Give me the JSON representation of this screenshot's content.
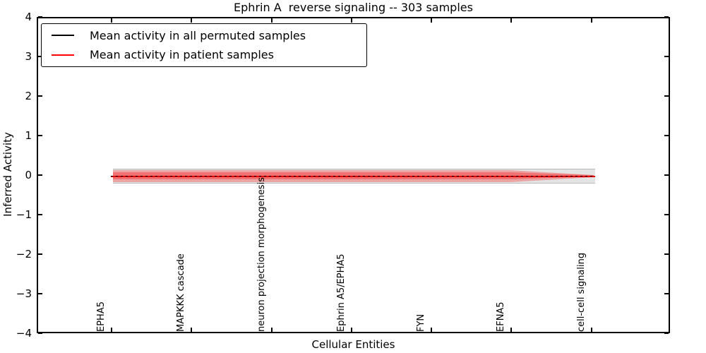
{
  "chart_data": {
    "type": "line",
    "title": "Ephrin A  reverse signaling -- 303 samples",
    "xlabel": "Cellular Entities",
    "ylabel": "Inferred Activity",
    "ylim": [
      -4,
      4
    ],
    "ytick_labels": [
      "4",
      "3",
      "2",
      "1",
      "0",
      "−1",
      "−2",
      "−3",
      "−4"
    ],
    "grid": false,
    "legend_position": "upper-left",
    "categories": [
      "EPHA5",
      "MAPKKK cascade",
      "neuron projection morphogenesis",
      "Ephrin A5/EPHA5",
      "FYN",
      "EFNA5",
      "cell-cell signaling"
    ],
    "series": [
      {
        "name": "Mean activity in all permuted samples",
        "color": "#000000",
        "line_style_on_plot": "dashed",
        "values": [
          0.0,
          0.0,
          0.0,
          0.0,
          0.0,
          0.0,
          0.0
        ],
        "band_upper": [
          0.18,
          0.18,
          0.18,
          0.18,
          0.18,
          0.18,
          0.18
        ],
        "band_lower": [
          -0.19,
          -0.19,
          -0.19,
          -0.19,
          -0.19,
          -0.19,
          -0.19
        ],
        "band_color": "#bbbbbb"
      },
      {
        "name": "Mean activity in patient samples",
        "color": "#ff0000",
        "line_style_on_plot": "solid",
        "values": [
          -0.02,
          -0.02,
          -0.02,
          -0.02,
          -0.02,
          -0.02,
          -0.01
        ],
        "band_upper": [
          0.13,
          0.13,
          0.13,
          0.13,
          0.13,
          0.13,
          0.03
        ],
        "band_lower": [
          -0.16,
          -0.16,
          -0.16,
          -0.16,
          -0.16,
          -0.16,
          -0.03
        ],
        "band_color": "#ff9999"
      }
    ]
  },
  "legend": {
    "items": [
      {
        "label": "Mean activity in all permuted samples",
        "color": "#000000"
      },
      {
        "label": "Mean activity in patient samples",
        "color": "#ff0000"
      }
    ]
  }
}
